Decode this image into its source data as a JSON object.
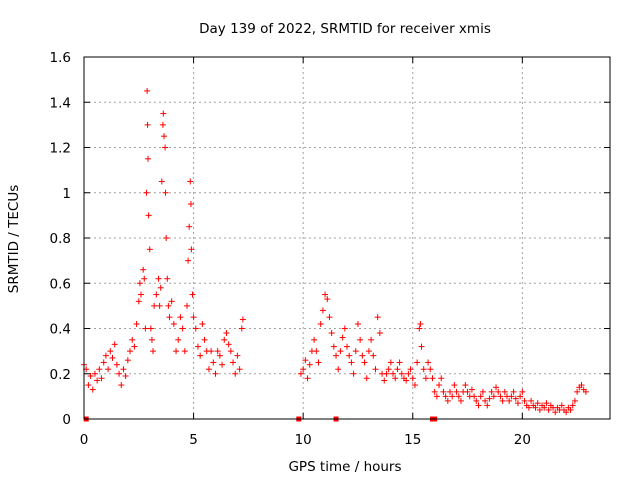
{
  "chart_data": {
    "type": "scatter",
    "title": "Day 139 of 2022, SRMTID for receiver xmis",
    "xlabel": "GPS time / hours",
    "ylabel": "SRMTID / TECUs",
    "xlim": [
      0,
      24
    ],
    "ylim": [
      0,
      1.6
    ],
    "xticks": [
      0,
      5,
      10,
      15,
      20
    ],
    "xtick_labels": [
      "0",
      "5",
      "10",
      "15",
      "20"
    ],
    "yticks": [
      0,
      0.2,
      0.4,
      0.6,
      0.8,
      1.0,
      1.2,
      1.4,
      1.6
    ],
    "ytick_labels": [
      "0",
      "0.2",
      "0.4",
      "0.6",
      "0.8",
      "1",
      "1.2",
      "1.4",
      "1.6"
    ],
    "grid": true,
    "marker": "plus",
    "color": "#ff0000",
    "series": [
      {
        "name": "SRMTID",
        "points": [
          [
            0.0,
            0.24
          ],
          [
            0.1,
            0.22
          ],
          [
            0.2,
            0.15
          ],
          [
            0.3,
            0.19
          ],
          [
            0.4,
            0.13
          ],
          [
            0.5,
            0.2
          ],
          [
            0.6,
            0.17
          ],
          [
            0.7,
            0.22
          ],
          [
            0.8,
            0.18
          ],
          [
            0.9,
            0.25
          ],
          [
            1.0,
            0.28
          ],
          [
            1.1,
            0.22
          ],
          [
            1.2,
            0.3
          ],
          [
            1.3,
            0.27
          ],
          [
            1.4,
            0.33
          ],
          [
            1.5,
            0.24
          ],
          [
            1.6,
            0.2
          ],
          [
            1.7,
            0.15
          ],
          [
            1.8,
            0.22
          ],
          [
            1.9,
            0.19
          ],
          [
            2.0,
            0.26
          ],
          [
            2.1,
            0.3
          ],
          [
            2.2,
            0.35
          ],
          [
            2.3,
            0.32
          ],
          [
            2.4,
            0.42
          ],
          [
            2.5,
            0.52
          ],
          [
            2.55,
            0.6
          ],
          [
            2.6,
            0.55
          ],
          [
            2.7,
            0.66
          ],
          [
            2.75,
            0.62
          ],
          [
            2.8,
            0.4
          ],
          [
            2.85,
            1.0
          ],
          [
            2.88,
            1.45
          ],
          [
            2.9,
            1.3
          ],
          [
            2.92,
            1.15
          ],
          [
            2.95,
            0.9
          ],
          [
            3.0,
            0.75
          ],
          [
            3.05,
            0.4
          ],
          [
            3.1,
            0.35
          ],
          [
            3.15,
            0.3
          ],
          [
            3.2,
            0.5
          ],
          [
            3.3,
            0.55
          ],
          [
            3.4,
            0.62
          ],
          [
            3.45,
            0.5
          ],
          [
            3.5,
            0.58
          ],
          [
            3.55,
            1.05
          ],
          [
            3.6,
            1.3
          ],
          [
            3.62,
            1.35
          ],
          [
            3.65,
            1.25
          ],
          [
            3.7,
            1.2
          ],
          [
            3.72,
            1.0
          ],
          [
            3.75,
            0.8
          ],
          [
            3.8,
            0.62
          ],
          [
            3.85,
            0.5
          ],
          [
            3.9,
            0.45
          ],
          [
            4.0,
            0.52
          ],
          [
            4.1,
            0.42
          ],
          [
            4.2,
            0.3
          ],
          [
            4.3,
            0.35
          ],
          [
            4.4,
            0.45
          ],
          [
            4.5,
            0.4
          ],
          [
            4.6,
            0.3
          ],
          [
            4.7,
            0.5
          ],
          [
            4.75,
            0.7
          ],
          [
            4.8,
            0.85
          ],
          [
            4.85,
            1.05
          ],
          [
            4.88,
            0.95
          ],
          [
            4.9,
            0.75
          ],
          [
            4.95,
            0.55
          ],
          [
            5.0,
            0.45
          ],
          [
            5.1,
            0.4
          ],
          [
            5.2,
            0.32
          ],
          [
            5.3,
            0.28
          ],
          [
            5.4,
            0.42
          ],
          [
            5.5,
            0.35
          ],
          [
            5.6,
            0.3
          ],
          [
            5.7,
            0.22
          ],
          [
            5.8,
            0.3
          ],
          [
            5.9,
            0.25
          ],
          [
            6.0,
            0.2
          ],
          [
            6.1,
            0.3
          ],
          [
            6.2,
            0.28
          ],
          [
            6.3,
            0.24
          ],
          [
            6.4,
            0.35
          ],
          [
            6.5,
            0.38
          ],
          [
            6.6,
            0.33
          ],
          [
            6.7,
            0.3
          ],
          [
            6.8,
            0.25
          ],
          [
            6.9,
            0.2
          ],
          [
            7.0,
            0.28
          ],
          [
            7.1,
            0.22
          ],
          [
            7.2,
            0.4
          ],
          [
            7.25,
            0.44
          ],
          [
            9.9,
            0.2
          ],
          [
            10.0,
            0.22
          ],
          [
            10.1,
            0.26
          ],
          [
            10.2,
            0.18
          ],
          [
            10.3,
            0.24
          ],
          [
            10.4,
            0.3
          ],
          [
            10.5,
            0.35
          ],
          [
            10.6,
            0.3
          ],
          [
            10.7,
            0.25
          ],
          [
            10.8,
            0.42
          ],
          [
            10.9,
            0.48
          ],
          [
            11.0,
            0.55
          ],
          [
            11.1,
            0.53
          ],
          [
            11.2,
            0.45
          ],
          [
            11.3,
            0.38
          ],
          [
            11.4,
            0.32
          ],
          [
            11.5,
            0.28
          ],
          [
            11.6,
            0.22
          ],
          [
            11.7,
            0.3
          ],
          [
            11.8,
            0.36
          ],
          [
            11.9,
            0.4
          ],
          [
            12.0,
            0.32
          ],
          [
            12.1,
            0.28
          ],
          [
            12.2,
            0.25
          ],
          [
            12.3,
            0.2
          ],
          [
            12.4,
            0.3
          ],
          [
            12.5,
            0.42
          ],
          [
            12.6,
            0.35
          ],
          [
            12.7,
            0.28
          ],
          [
            12.8,
            0.25
          ],
          [
            12.9,
            0.18
          ],
          [
            13.0,
            0.3
          ],
          [
            13.1,
            0.35
          ],
          [
            13.2,
            0.28
          ],
          [
            13.3,
            0.22
          ],
          [
            13.4,
            0.45
          ],
          [
            13.5,
            0.38
          ],
          [
            13.6,
            0.2
          ],
          [
            13.7,
            0.17
          ],
          [
            13.8,
            0.2
          ],
          [
            13.9,
            0.22
          ],
          [
            14.0,
            0.25
          ],
          [
            14.1,
            0.2
          ],
          [
            14.2,
            0.18
          ],
          [
            14.3,
            0.22
          ],
          [
            14.4,
            0.25
          ],
          [
            14.5,
            0.2
          ],
          [
            14.6,
            0.18
          ],
          [
            14.7,
            0.17
          ],
          [
            14.8,
            0.2
          ],
          [
            14.9,
            0.22
          ],
          [
            15.0,
            0.18
          ],
          [
            15.1,
            0.15
          ],
          [
            15.2,
            0.25
          ],
          [
            15.3,
            0.4
          ],
          [
            15.35,
            0.42
          ],
          [
            15.4,
            0.32
          ],
          [
            15.5,
            0.22
          ],
          [
            15.6,
            0.18
          ],
          [
            15.7,
            0.25
          ],
          [
            15.8,
            0.22
          ],
          [
            15.9,
            0.18
          ],
          [
            16.0,
            0.12
          ],
          [
            16.1,
            0.1
          ],
          [
            16.2,
            0.15
          ],
          [
            16.3,
            0.18
          ],
          [
            16.4,
            0.12
          ],
          [
            16.5,
            0.1
          ],
          [
            16.6,
            0.08
          ],
          [
            16.7,
            0.12
          ],
          [
            16.8,
            0.1
          ],
          [
            16.9,
            0.15
          ],
          [
            17.0,
            0.12
          ],
          [
            17.1,
            0.1
          ],
          [
            17.2,
            0.08
          ],
          [
            17.3,
            0.12
          ],
          [
            17.4,
            0.15
          ],
          [
            17.5,
            0.12
          ],
          [
            17.6,
            0.1
          ],
          [
            17.7,
            0.13
          ],
          [
            17.8,
            0.1
          ],
          [
            17.9,
            0.08
          ],
          [
            18.0,
            0.06
          ],
          [
            18.1,
            0.1
          ],
          [
            18.2,
            0.12
          ],
          [
            18.3,
            0.08
          ],
          [
            18.4,
            0.06
          ],
          [
            18.5,
            0.09
          ],
          [
            18.6,
            0.12
          ],
          [
            18.7,
            0.1
          ],
          [
            18.8,
            0.14
          ],
          [
            18.9,
            0.12
          ],
          [
            19.0,
            0.1
          ],
          [
            19.1,
            0.08
          ],
          [
            19.2,
            0.12
          ],
          [
            19.3,
            0.1
          ],
          [
            19.4,
            0.08
          ],
          [
            19.5,
            0.1
          ],
          [
            19.6,
            0.12
          ],
          [
            19.7,
            0.09
          ],
          [
            19.8,
            0.07
          ],
          [
            19.9,
            0.1
          ],
          [
            20.0,
            0.12
          ],
          [
            20.1,
            0.08
          ],
          [
            20.2,
            0.06
          ],
          [
            20.3,
            0.05
          ],
          [
            20.4,
            0.08
          ],
          [
            20.5,
            0.06
          ],
          [
            20.6,
            0.05
          ],
          [
            20.7,
            0.07
          ],
          [
            20.8,
            0.04
          ],
          [
            20.9,
            0.06
          ],
          [
            21.0,
            0.05
          ],
          [
            21.1,
            0.07
          ],
          [
            21.2,
            0.04
          ],
          [
            21.3,
            0.06
          ],
          [
            21.4,
            0.05
          ],
          [
            21.5,
            0.03
          ],
          [
            21.6,
            0.05
          ],
          [
            21.7,
            0.04
          ],
          [
            21.8,
            0.06
          ],
          [
            21.9,
            0.04
          ],
          [
            22.0,
            0.03
          ],
          [
            22.1,
            0.05
          ],
          [
            22.2,
            0.04
          ],
          [
            22.3,
            0.06
          ],
          [
            22.4,
            0.08
          ],
          [
            22.5,
            0.12
          ],
          [
            22.6,
            0.14
          ],
          [
            22.7,
            0.15
          ],
          [
            22.8,
            0.13
          ],
          [
            22.9,
            0.12
          ]
        ]
      }
    ],
    "zero_markers": [
      0.1,
      9.8,
      11.5,
      15.9,
      16.0
    ]
  }
}
